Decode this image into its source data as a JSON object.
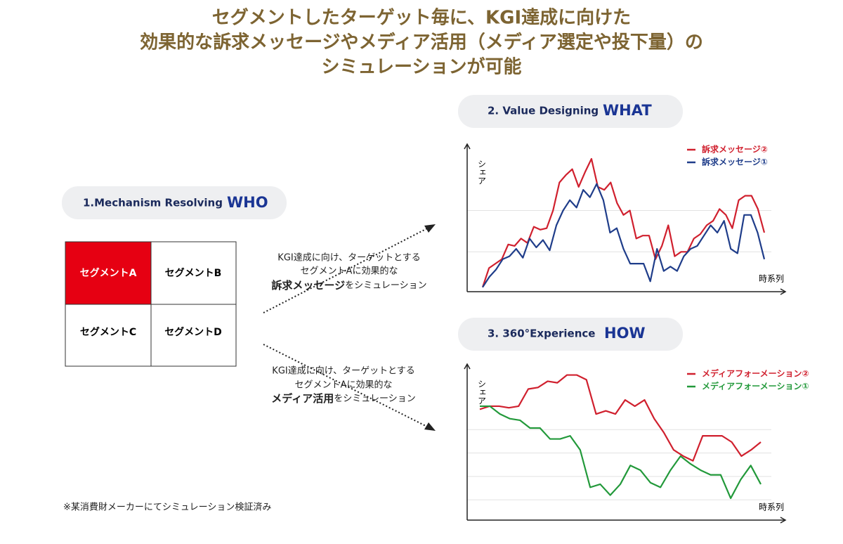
{
  "header": {
    "title_lines": [
      "セグメントしたターゲット毎に、KGI達成に向けた",
      "効果的な訴求メッセージやメディア活用（メディア選定や投下量）の",
      "シミュレーションが可能"
    ]
  },
  "steps": [
    {
      "label": "1.Mechanism Resolving",
      "keyword": "WHO"
    },
    {
      "label": "2. Value Designing",
      "keyword": "WHAT"
    },
    {
      "label": "3. 360°Experience",
      "keyword": "HOW"
    }
  ],
  "segments": [
    "セグメントA",
    "セグメントB",
    "セグメントC",
    "セグメントD"
  ],
  "annotations": [
    {
      "line1": "KGI達成に向け、ターゲットとする",
      "line2": "セグメントAに効果的な",
      "bold": "訴求メッセージ",
      "rest": "をシミュレーション"
    },
    {
      "line1": "KGI達成に向け、ターゲットとする",
      "line2": "セグメントAに効果的な",
      "bold": "メディア活用",
      "rest": "をシミュレーション"
    }
  ],
  "charts": [
    {
      "type": "line",
      "y_label": "シェア",
      "x_label": "時系列",
      "ylim": [
        0,
        100
      ],
      "grid_lines": [
        55,
        27
      ],
      "series": [
        {
          "name": "訴求メッセージ②",
          "color": "#d0202e",
          "values": [
            3,
            16,
            19,
            22,
            32,
            31,
            36,
            33,
            44,
            42,
            43,
            55,
            74,
            79,
            83,
            71,
            81,
            90,
            71,
            69,
            74,
            60,
            52,
            55,
            36,
            38,
            38,
            22,
            31,
            45,
            24,
            27,
            27,
            36,
            39,
            45,
            48,
            56,
            52,
            43,
            62,
            65,
            65,
            56,
            40
          ]
        },
        {
          "name": "訴求メッセージ①",
          "color": "#1f3d8a",
          "values": [
            3,
            10,
            15,
            22,
            24,
            29,
            23,
            36,
            30,
            35,
            28,
            45,
            55,
            62,
            57,
            69,
            64,
            73,
            62,
            40,
            43,
            29,
            19,
            19,
            19,
            7,
            29,
            14,
            17,
            14,
            24,
            29,
            31,
            38,
            45,
            40,
            48,
            29,
            26,
            52,
            52,
            40,
            22
          ]
        }
      ]
    },
    {
      "type": "line",
      "y_label": "シェア",
      "x_label": "時系列",
      "ylim": [
        0,
        100
      ],
      "grid_lines": [
        58,
        43,
        28,
        13
      ],
      "series": [
        {
          "name": "メディアフォーメーション②",
          "color": "#d0202e",
          "values": [
            71,
            73,
            73,
            72,
            73,
            84,
            85,
            89,
            88,
            93,
            93,
            90,
            68,
            70,
            68,
            77,
            73,
            77,
            65,
            56,
            45,
            41,
            38,
            54,
            54,
            54,
            50,
            41,
            45,
            50
          ]
        },
        {
          "name": "メディアフォーメーション①",
          "color": "#22993a",
          "values": [
            73,
            73,
            68,
            65,
            64,
            59,
            59,
            52,
            52,
            54,
            45,
            21,
            23,
            16,
            23,
            35,
            32,
            24,
            21,
            32,
            41,
            36,
            32,
            29,
            29,
            14,
            26,
            35,
            23
          ]
        }
      ]
    }
  ],
  "footnote": "※某消費財メーカーにてシミュレーション検証済み"
}
